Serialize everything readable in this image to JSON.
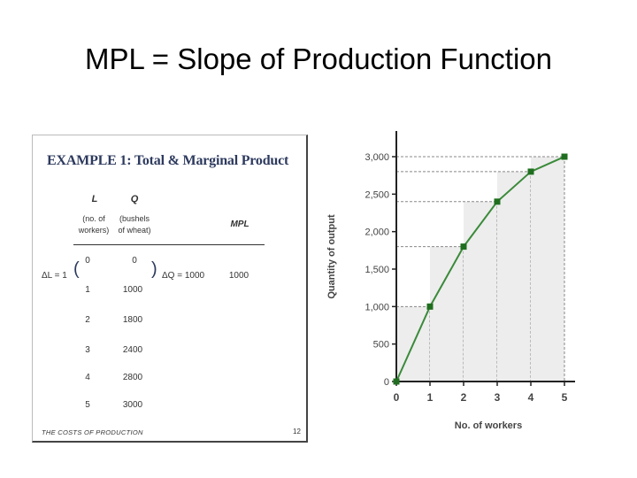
{
  "slide": {
    "title": "MPL = Slope of Production Function"
  },
  "table": {
    "example_title": "EXAMPLE 1:  Total & Marginal Product",
    "col_L": "L",
    "col_L_sub1": "(no. of",
    "col_L_sub2": "workers)",
    "col_Q": "Q",
    "col_Q_sub1": "(bushels",
    "col_Q_sub2": "of wheat)",
    "col_MPL": "MPL",
    "rows": [
      {
        "L": "0",
        "Q": "0"
      },
      {
        "L": "1",
        "Q": "1000"
      },
      {
        "L": "2",
        "Q": "1800"
      },
      {
        "L": "3",
        "Q": "2400"
      },
      {
        "L": "4",
        "Q": "2800"
      },
      {
        "L": "5",
        "Q": "3000"
      }
    ],
    "delta_L": "ΔL = 1",
    "delta_Q": "ΔQ = 1000",
    "mpl_value": "1000",
    "footer": "THE COSTS OF PRODUCTION",
    "page_number": "12"
  },
  "chart_data": {
    "type": "line",
    "x": [
      0,
      1,
      2,
      3,
      4,
      5
    ],
    "y": [
      0,
      1000,
      1800,
      2400,
      2800,
      3000
    ],
    "xlabel": "No. of workers",
    "ylabel": "Quantity of output",
    "xticks": [
      "0",
      "1",
      "2",
      "3",
      "4",
      "5"
    ],
    "yticks": [
      "0",
      "500",
      "1,000",
      "1,500",
      "2,000",
      "2,500",
      "3,000"
    ],
    "xlim": [
      0,
      5
    ],
    "ylim": [
      0,
      3000
    ],
    "grid": false,
    "line_color": "#3a8a3a",
    "marker_color": "#1f6e1f"
  }
}
